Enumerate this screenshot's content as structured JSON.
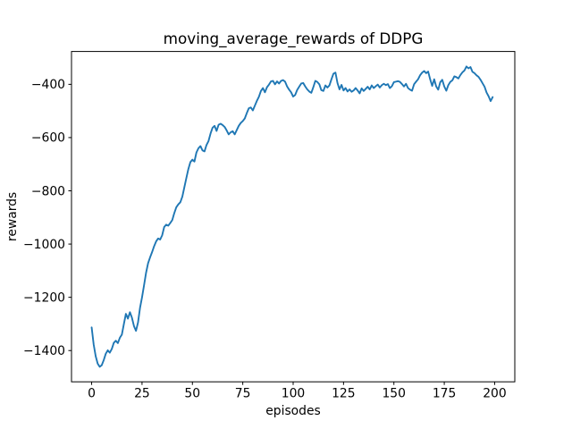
{
  "figure": {
    "title": "moving_average_rewards of DDPG",
    "xlabel": "episodes",
    "ylabel": "rewards"
  },
  "chart_data": {
    "type": "line",
    "title": "moving_average_rewards of DDPG",
    "xlabel": "episodes",
    "ylabel": "rewards",
    "series": [
      {
        "name": "moving_average_rewards",
        "color": "#1f77b4",
        "x_start": 0,
        "x_step": 1,
        "values": [
          -1313,
          -1377,
          -1421,
          -1449,
          -1461,
          -1455,
          -1436,
          -1412,
          -1399,
          -1408,
          -1394,
          -1371,
          -1363,
          -1372,
          -1352,
          -1340,
          -1300,
          -1262,
          -1280,
          -1256,
          -1277,
          -1308,
          -1326,
          -1295,
          -1240,
          -1200,
          -1155,
          -1108,
          -1072,
          -1050,
          -1030,
          -1008,
          -990,
          -979,
          -983,
          -967,
          -936,
          -927,
          -931,
          -921,
          -910,
          -884,
          -862,
          -851,
          -843,
          -822,
          -787,
          -752,
          -718,
          -692,
          -683,
          -690,
          -656,
          -640,
          -632,
          -648,
          -652,
          -628,
          -613,
          -585,
          -563,
          -556,
          -575,
          -552,
          -548,
          -553,
          -560,
          -573,
          -588,
          -580,
          -576,
          -588,
          -572,
          -556,
          -545,
          -538,
          -528,
          -508,
          -490,
          -487,
          -498,
          -480,
          -462,
          -447,
          -425,
          -414,
          -430,
          -411,
          -401,
          -389,
          -387,
          -400,
          -389,
          -397,
          -387,
          -384,
          -390,
          -408,
          -420,
          -430,
          -446,
          -440,
          -421,
          -409,
          -397,
          -395,
          -408,
          -419,
          -427,
          -432,
          -411,
          -387,
          -391,
          -400,
          -422,
          -425,
          -404,
          -412,
          -404,
          -381,
          -360,
          -356,
          -395,
          -419,
          -402,
          -423,
          -414,
          -427,
          -419,
          -428,
          -423,
          -414,
          -423,
          -434,
          -415,
          -425,
          -417,
          -409,
          -419,
          -404,
          -414,
          -407,
          -401,
          -412,
          -403,
          -398,
          -403,
          -399,
          -414,
          -407,
          -392,
          -390,
          -388,
          -391,
          -399,
          -408,
          -398,
          -414,
          -420,
          -424,
          -400,
          -390,
          -381,
          -366,
          -356,
          -350,
          -358,
          -352,
          -381,
          -406,
          -381,
          -408,
          -420,
          -392,
          -383,
          -408,
          -424,
          -403,
          -391,
          -385,
          -370,
          -373,
          -378,
          -365,
          -355,
          -348,
          -333,
          -340,
          -335,
          -353,
          -358,
          -366,
          -372,
          -383,
          -396,
          -409,
          -431,
          -445,
          -463,
          -448
        ]
      }
    ],
    "xlim": [
      -10,
      210
    ],
    "ylim": [
      -1517.4,
      -276.6
    ],
    "xticks": [
      {
        "value": 0,
        "label": "0"
      },
      {
        "value": 25,
        "label": "25"
      },
      {
        "value": 50,
        "label": "50"
      },
      {
        "value": 75,
        "label": "75"
      },
      {
        "value": 100,
        "label": "100"
      },
      {
        "value": 125,
        "label": "125"
      },
      {
        "value": 150,
        "label": "150"
      },
      {
        "value": 175,
        "label": "175"
      },
      {
        "value": 200,
        "label": "200"
      }
    ],
    "yticks": [
      {
        "value": -400,
        "label": "−400"
      },
      {
        "value": -600,
        "label": "−600"
      },
      {
        "value": -800,
        "label": "−800"
      },
      {
        "value": -1000,
        "label": "−1000"
      },
      {
        "value": -1200,
        "label": "−1200"
      },
      {
        "value": -1400,
        "label": "−1400"
      }
    ],
    "grid": false,
    "background": "#ffffff",
    "spine_color": "#000000"
  }
}
